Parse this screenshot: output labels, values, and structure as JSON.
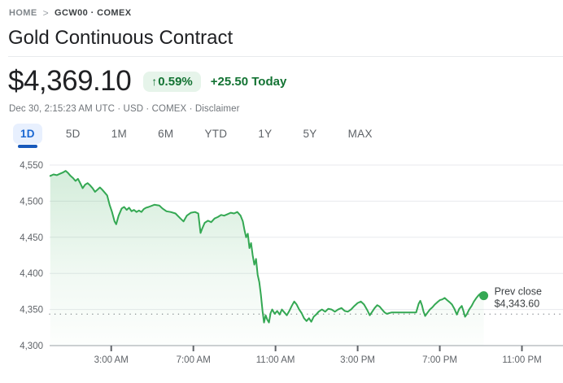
{
  "breadcrumb": {
    "home": "HOME",
    "separator": ">",
    "symbol": "GCW00 · COMEX"
  },
  "header": {
    "title": "Gold Continuous Contract"
  },
  "quote": {
    "price": "$4,369.10",
    "change_badge": {
      "arrow": "↑",
      "percent": "0.59%"
    },
    "change_today": "+25.50 Today",
    "meta": "Dec 30, 2:15:23 AM UTC · USD · COMEX ·",
    "disclaimer": "Disclaimer"
  },
  "range_tabs": [
    {
      "label": "1D",
      "active": true
    },
    {
      "label": "5D",
      "active": false
    },
    {
      "label": "1M",
      "active": false
    },
    {
      "label": "6M",
      "active": false
    },
    {
      "label": "YTD",
      "active": false
    },
    {
      "label": "1Y",
      "active": false
    },
    {
      "label": "5Y",
      "active": false
    },
    {
      "label": "MAX",
      "active": false
    }
  ],
  "colors": {
    "positive_text": "#137333",
    "badge_bg": "#e6f4ea",
    "line": "#34a853",
    "area_rgb": "52,168,83",
    "active_tab_text": "#1967d2",
    "active_tab_bg": "#e8f0fe",
    "active_tab_underline": "#185abc",
    "grid": "#e8eaed",
    "axis_line": "#9aa0a6",
    "tick_mark": "#5f6368",
    "axis_text": "#5f6368",
    "prev_close_dots": "#878c91",
    "annotation_text": "#3c4043"
  },
  "chart_data": {
    "type": "area",
    "title": "Gold Continuous Contract 1D intraday price (USD)",
    "x_unit": "hour_of_day",
    "x_range": [
      0,
      25
    ],
    "x_ticks": [
      {
        "h": 3,
        "label": "3:00 AM"
      },
      {
        "h": 7,
        "label": "7:00 AM"
      },
      {
        "h": 11,
        "label": "11:00 AM"
      },
      {
        "h": 15,
        "label": "3:00 PM"
      },
      {
        "h": 19,
        "label": "7:00 PM"
      },
      {
        "h": 23,
        "label": "11:00 PM"
      }
    ],
    "y_range": [
      4300,
      4550
    ],
    "y_ticks": [
      {
        "v": 4550,
        "label": "4,550"
      },
      {
        "v": 4500,
        "label": "4,500"
      },
      {
        "v": 4450,
        "label": "4,450"
      },
      {
        "v": 4400,
        "label": "4,400"
      },
      {
        "v": 4350,
        "label": "4,350"
      },
      {
        "v": 4300,
        "label": "4,300"
      }
    ],
    "grid": true,
    "legend": false,
    "prev_close": {
      "value": 4343.6,
      "label": "Prev close",
      "value_label": "$4,343.60"
    },
    "last_price": 4369.1,
    "series": [
      {
        "name": "GCW00",
        "points": [
          [
            0.03,
            4535
          ],
          [
            0.19,
            4537
          ],
          [
            0.35,
            4536
          ],
          [
            0.5,
            4538
          ],
          [
            0.66,
            4540
          ],
          [
            0.78,
            4542
          ],
          [
            0.9,
            4539
          ],
          [
            1.02,
            4535
          ],
          [
            1.14,
            4532
          ],
          [
            1.26,
            4528
          ],
          [
            1.38,
            4531
          ],
          [
            1.49,
            4525
          ],
          [
            1.61,
            4518
          ],
          [
            1.73,
            4523
          ],
          [
            1.85,
            4525
          ],
          [
            1.97,
            4522
          ],
          [
            2.09,
            4518
          ],
          [
            2.21,
            4513
          ],
          [
            2.33,
            4516
          ],
          [
            2.45,
            4519
          ],
          [
            2.56,
            4516
          ],
          [
            2.68,
            4512
          ],
          [
            2.8,
            4508
          ],
          [
            2.92,
            4495
          ],
          [
            3.04,
            4485
          ],
          [
            3.16,
            4472
          ],
          [
            3.24,
            4468
          ],
          [
            3.36,
            4480
          ],
          [
            3.51,
            4490
          ],
          [
            3.63,
            4492
          ],
          [
            3.75,
            4488
          ],
          [
            3.87,
            4491
          ],
          [
            3.99,
            4486
          ],
          [
            4.11,
            4488
          ],
          [
            4.23,
            4485
          ],
          [
            4.35,
            4487
          ],
          [
            4.47,
            4485
          ],
          [
            4.58,
            4489
          ],
          [
            4.7,
            4491
          ],
          [
            4.82,
            4492
          ],
          [
            5.1,
            4495
          ],
          [
            5.34,
            4494
          ],
          [
            5.49,
            4490
          ],
          [
            5.69,
            4486
          ],
          [
            5.89,
            4485
          ],
          [
            6.13,
            4483
          ],
          [
            6.37,
            4476
          ],
          [
            6.52,
            4472
          ],
          [
            6.68,
            4480
          ],
          [
            6.88,
            4484
          ],
          [
            7.08,
            4485
          ],
          [
            7.24,
            4483
          ],
          [
            7.35,
            4456
          ],
          [
            7.43,
            4462
          ],
          [
            7.55,
            4470
          ],
          [
            7.71,
            4473
          ],
          [
            7.87,
            4471
          ],
          [
            8.03,
            4476
          ],
          [
            8.19,
            4478
          ],
          [
            8.35,
            4481
          ],
          [
            8.5,
            4480
          ],
          [
            8.66,
            4482
          ],
          [
            8.82,
            4484
          ],
          [
            8.98,
            4483
          ],
          [
            9.14,
            4485
          ],
          [
            9.3,
            4480
          ],
          [
            9.41,
            4472
          ],
          [
            9.49,
            4460
          ],
          [
            9.57,
            4450
          ],
          [
            9.65,
            4455
          ],
          [
            9.73,
            4435
          ],
          [
            9.81,
            4442
          ],
          [
            9.89,
            4425
          ],
          [
            9.97,
            4412
          ],
          [
            10.05,
            4420
          ],
          [
            10.13,
            4398
          ],
          [
            10.21,
            4388
          ],
          [
            10.29,
            4370
          ],
          [
            10.37,
            4348
          ],
          [
            10.44,
            4332
          ],
          [
            10.52,
            4342
          ],
          [
            10.6,
            4336
          ],
          [
            10.68,
            4332
          ],
          [
            10.76,
            4345
          ],
          [
            10.84,
            4350
          ],
          [
            10.96,
            4344
          ],
          [
            11.08,
            4348
          ],
          [
            11.2,
            4343
          ],
          [
            11.31,
            4350
          ],
          [
            11.43,
            4346
          ],
          [
            11.55,
            4342
          ],
          [
            11.67,
            4348
          ],
          [
            11.79,
            4355
          ],
          [
            11.91,
            4361
          ],
          [
            12.03,
            4357
          ],
          [
            12.15,
            4350
          ],
          [
            12.27,
            4345
          ],
          [
            12.39,
            4338
          ],
          [
            12.51,
            4334
          ],
          [
            12.63,
            4338
          ],
          [
            12.74,
            4333
          ],
          [
            12.86,
            4340
          ],
          [
            12.98,
            4343
          ],
          [
            13.1,
            4347
          ],
          [
            13.26,
            4350
          ],
          [
            13.42,
            4347
          ],
          [
            13.57,
            4351
          ],
          [
            13.73,
            4350
          ],
          [
            13.89,
            4347
          ],
          [
            14.05,
            4350
          ],
          [
            14.21,
            4352
          ],
          [
            14.37,
            4348
          ],
          [
            14.52,
            4347
          ],
          [
            14.68,
            4350
          ],
          [
            14.84,
            4355
          ],
          [
            15,
            4359
          ],
          [
            15.16,
            4361
          ],
          [
            15.31,
            4357
          ],
          [
            15.47,
            4349
          ],
          [
            15.59,
            4342
          ],
          [
            15.71,
            4347
          ],
          [
            15.83,
            4352
          ],
          [
            15.95,
            4356
          ],
          [
            16.07,
            4354
          ],
          [
            16.19,
            4350
          ],
          [
            16.31,
            4346
          ],
          [
            16.42,
            4344
          ],
          [
            16.54,
            4345
          ],
          [
            16.66,
            4346
          ],
          [
            16.98,
            4346
          ],
          [
            17.3,
            4346
          ],
          [
            17.61,
            4346
          ],
          [
            17.85,
            4346
          ],
          [
            17.97,
            4358
          ],
          [
            18.05,
            4362
          ],
          [
            18.13,
            4356
          ],
          [
            18.21,
            4347
          ],
          [
            18.29,
            4341
          ],
          [
            18.41,
            4346
          ],
          [
            18.52,
            4350
          ],
          [
            18.64,
            4353
          ],
          [
            18.76,
            4357
          ],
          [
            18.88,
            4360
          ],
          [
            19,
            4363
          ],
          [
            19.12,
            4364
          ],
          [
            19.24,
            4366
          ],
          [
            19.36,
            4363
          ],
          [
            19.48,
            4360
          ],
          [
            19.59,
            4357
          ],
          [
            19.71,
            4351
          ],
          [
            19.83,
            4343
          ],
          [
            19.95,
            4351
          ],
          [
            20.07,
            4355
          ],
          [
            20.15,
            4348
          ],
          [
            20.23,
            4340
          ],
          [
            20.31,
            4343
          ],
          [
            20.43,
            4350
          ],
          [
            20.55,
            4355
          ],
          [
            20.66,
            4361
          ],
          [
            20.78,
            4366
          ],
          [
            20.9,
            4370
          ],
          [
            21.02,
            4373
          ],
          [
            21.1,
            4371
          ],
          [
            21.14,
            4369.1
          ]
        ]
      }
    ]
  }
}
